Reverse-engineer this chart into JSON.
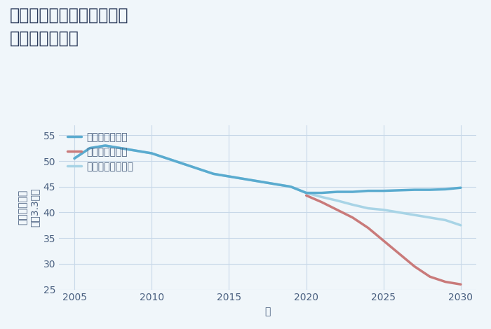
{
  "title": "兵庫県姫路市北条永良町の\n土地の価格推移",
  "xlabel": "年",
  "ylabel": "単価（万円）\n坪（3.3㎡）",
  "ylim": [
    25,
    57
  ],
  "xlim": [
    2004,
    2031
  ],
  "yticks": [
    25,
    30,
    35,
    40,
    45,
    50,
    55
  ],
  "xticks": [
    2005,
    2010,
    2015,
    2020,
    2025,
    2030
  ],
  "good_scenario": {
    "label": "グッドシナリオ",
    "color": "#5aabcf",
    "linewidth": 2.5,
    "x": [
      2005,
      2006,
      2007,
      2008,
      2009,
      2010,
      2011,
      2012,
      2013,
      2014,
      2015,
      2016,
      2017,
      2018,
      2019,
      2020,
      2021,
      2022,
      2023,
      2024,
      2025,
      2026,
      2027,
      2028,
      2029,
      2030
    ],
    "y": [
      50.5,
      52.5,
      53.0,
      52.5,
      52.0,
      51.5,
      50.5,
      49.5,
      48.5,
      47.5,
      47.0,
      46.5,
      46.0,
      45.5,
      45.0,
      43.8,
      43.8,
      44.0,
      44.0,
      44.2,
      44.2,
      44.3,
      44.4,
      44.4,
      44.5,
      44.8
    ]
  },
  "bad_scenario": {
    "label": "バッドシナリオ",
    "color": "#c97a7a",
    "linewidth": 2.5,
    "x": [
      2020,
      2021,
      2022,
      2023,
      2024,
      2025,
      2026,
      2027,
      2028,
      2029,
      2030
    ],
    "y": [
      43.3,
      42.0,
      40.5,
      39.0,
      37.0,
      34.5,
      32.0,
      29.5,
      27.5,
      26.5,
      26.0
    ]
  },
  "normal_scenario": {
    "label": "ノーマルシナリオ",
    "color": "#a8d4e6",
    "linewidth": 2.5,
    "x": [
      2005,
      2006,
      2007,
      2008,
      2009,
      2010,
      2011,
      2012,
      2013,
      2014,
      2015,
      2016,
      2017,
      2018,
      2019,
      2020,
      2021,
      2022,
      2023,
      2024,
      2025,
      2026,
      2027,
      2028,
      2029,
      2030
    ],
    "y": [
      50.5,
      52.5,
      53.0,
      52.5,
      52.0,
      51.5,
      50.5,
      49.5,
      48.5,
      47.5,
      47.0,
      46.5,
      46.0,
      45.5,
      45.0,
      43.8,
      43.0,
      42.3,
      41.5,
      40.8,
      40.5,
      40.0,
      39.5,
      39.0,
      38.5,
      37.5
    ]
  },
  "background_color": "#f0f6fa",
  "grid_color": "#c8d8e8",
  "title_color": "#2a3a5a",
  "axis_color": "#4a6080",
  "legend_fontsize": 10,
  "title_fontsize": 17,
  "axis_label_fontsize": 10,
  "tick_fontsize": 10
}
